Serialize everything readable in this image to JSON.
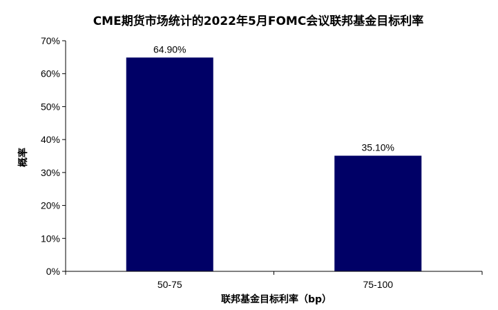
{
  "chart_data": {
    "type": "bar",
    "title": "CME期货市场统计的2022年5月FOMC会议联邦基金目标利率",
    "xlabel": "联邦基金目标利率（bp）",
    "ylabel": "概率",
    "categories": [
      "50-75",
      "75-100"
    ],
    "values": [
      64.9,
      35.1
    ],
    "data_labels": [
      "64.90%",
      "35.10%"
    ],
    "ylim": [
      0,
      70
    ],
    "yticks": [
      0,
      10,
      20,
      30,
      40,
      50,
      60,
      70
    ],
    "ytick_labels": [
      "0%",
      "10%",
      "20%",
      "30%",
      "40%",
      "50%",
      "60%",
      "70%"
    ],
    "grid": false,
    "legend": "none",
    "bar_color": "#000066"
  }
}
